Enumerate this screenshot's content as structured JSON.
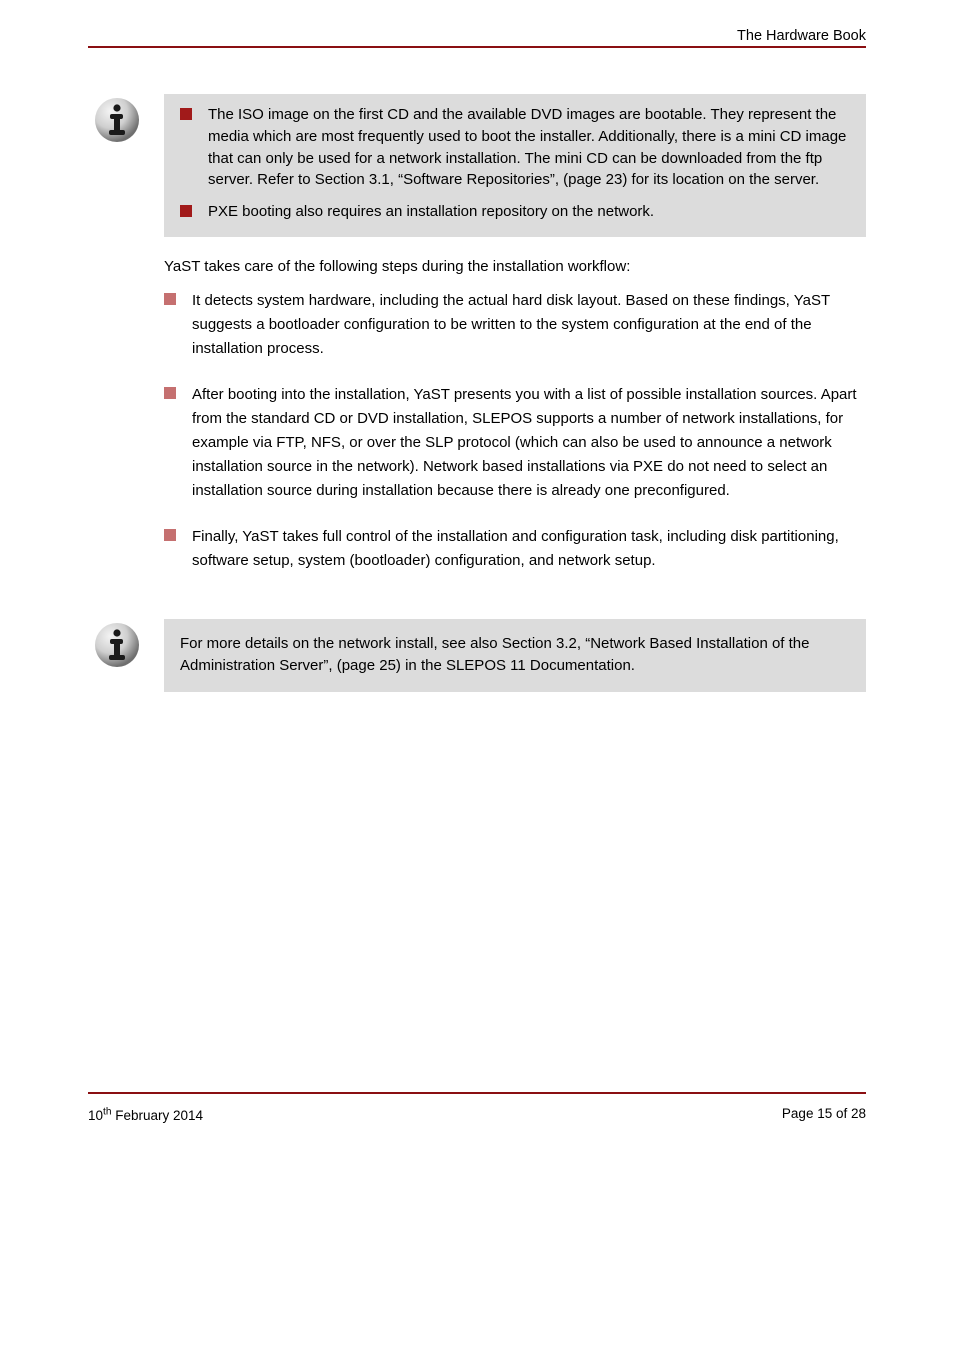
{
  "colors": {
    "rule": "#8a0f12",
    "note_bg": "#dcdcdc",
    "bullet_dark": "#a11a1a",
    "bullet_light": "#c57070",
    "icon_grad_light": "#e8e8e8",
    "icon_grad_dark": "#7a7a7a",
    "icon_glyph": "#1a1a1a"
  },
  "header": "The Hardware Book",
  "note1": {
    "items": [
      "The ISO image on the first CD and the available DVD images are bootable. They represent the media which are most frequently used to boot the installer. Additionally, there is a mini CD image that can only be used for a network installation. The mini CD can be downloaded from the ftp server. Refer to Section 3.1, “Software Repositories”, (page 23) for its location on the server.",
      "PXE booting also requires an installation repository on the network."
    ]
  },
  "body": {
    "lead": "YaST takes care of the following steps during the installation workflow:",
    "bullets": [
      "It detects system hardware, including the actual hard disk layout. Based on these findings, YaST suggests a bootloader configuration to be written to the system configuration at the end of the installation process.",
      "After booting into the installation, YaST presents you with a list of possible installation sources. Apart from the standard CD or DVD installation, SLEPOS supports a number of network installations, for example via FTP, NFS, or over the SLP protocol (which can also be used to announce a network installation source in the network). Network based installations via PXE do not need to select an installation source during installation because there is already one preconfigured.",
      "Finally, YaST takes full control of the installation and configuration task, including disk partitioning, software setup, system (bootloader) configuration, and network setup."
    ]
  },
  "note2": {
    "text": "For more details on the network install, see also Section 3.2, “Network Based Installation of the Administration Server”, (page 25) in the SLEPOS 11 Documentation."
  },
  "footer": {
    "left": "10th February 2014",
    "right": "Page 15 of 28"
  }
}
